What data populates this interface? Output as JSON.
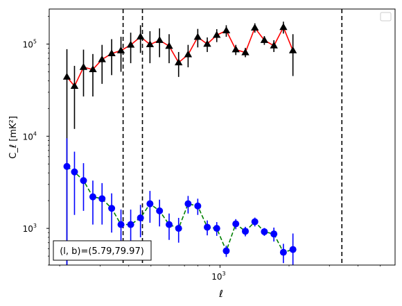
{
  "chart_data": {
    "type": "line",
    "xlabel": "ℓ",
    "ylabel": "C_ℓ [mK²]",
    "xscale": "log",
    "yscale": "log",
    "xlim": [
      180,
      5800
    ],
    "ylim": [
      400,
      240000
    ],
    "x_ticks": [
      {
        "value": 1000,
        "label": "10",
        "sup": "3"
      }
    ],
    "y_ticks": [
      {
        "value": 1000,
        "label": "10",
        "sup": "3"
      },
      {
        "value": 10000,
        "label": "10",
        "sup": "4"
      },
      {
        "value": 100000,
        "label": "10",
        "sup": "5"
      }
    ],
    "grid": false,
    "legend": {
      "placement": "top-right",
      "entries": []
    },
    "annotation": "(l, b)=(5.79,79.97)",
    "vlines": [
      378,
      459,
      3400
    ],
    "series": [
      {
        "color": "#ff0000",
        "marker": "triangle",
        "marker_color": "#000000",
        "error_color": "#000000",
        "linestyle": "solid",
        "points": [
          {
            "x": 215,
            "y": 44000,
            "lo": 330,
            "hi": 88000
          },
          {
            "x": 232,
            "y": 35000,
            "lo": 12000,
            "hi": 58000
          },
          {
            "x": 254,
            "y": 56000,
            "lo": 27000,
            "hi": 87000
          },
          {
            "x": 279,
            "y": 53000,
            "lo": 27000,
            "hi": 78000
          },
          {
            "x": 306,
            "y": 68000,
            "lo": 37000,
            "hi": 98000
          },
          {
            "x": 337,
            "y": 79000,
            "lo": 46000,
            "hi": 113000
          },
          {
            "x": 370,
            "y": 85000,
            "lo": 50000,
            "hi": 120000
          },
          {
            "x": 408,
            "y": 98000,
            "lo": 62000,
            "hi": 133000
          },
          {
            "x": 450,
            "y": 120000,
            "lo": 80000,
            "hi": 160000
          },
          {
            "x": 495,
            "y": 99000,
            "lo": 62000,
            "hi": 138000
          },
          {
            "x": 545,
            "y": 110000,
            "lo": 72000,
            "hi": 148000
          },
          {
            "x": 600,
            "y": 95000,
            "lo": 62000,
            "hi": 128000
          },
          {
            "x": 660,
            "y": 63000,
            "lo": 44000,
            "hi": 82000
          },
          {
            "x": 726,
            "y": 77000,
            "lo": 56000,
            "hi": 98000
          },
          {
            "x": 800,
            "y": 119000,
            "lo": 92000,
            "hi": 146000
          },
          {
            "x": 880,
            "y": 100000,
            "lo": 82000,
            "hi": 118000
          },
          {
            "x": 968,
            "y": 125000,
            "lo": 105000,
            "hi": 145000
          },
          {
            "x": 1065,
            "y": 140000,
            "lo": 120000,
            "hi": 160000
          },
          {
            "x": 1172,
            "y": 87000,
            "lo": 76000,
            "hi": 98000
          },
          {
            "x": 1290,
            "y": 81000,
            "lo": 72000,
            "hi": 91000
          },
          {
            "x": 1419,
            "y": 150000,
            "lo": 133000,
            "hi": 168000
          },
          {
            "x": 1561,
            "y": 110000,
            "lo": 98000,
            "hi": 122000
          },
          {
            "x": 1718,
            "y": 96000,
            "lo": 82000,
            "hi": 110000
          },
          {
            "x": 1890,
            "y": 152000,
            "lo": 130000,
            "hi": 175000
          },
          {
            "x": 2080,
            "y": 85000,
            "lo": 45000,
            "hi": 128000
          }
        ]
      },
      {
        "color": "#008000",
        "marker": "circle",
        "marker_color": "#0000ff",
        "error_color": "#0000ff",
        "linestyle": "dashed",
        "points": [
          {
            "x": 215,
            "y": 4700,
            "lo": 330,
            "hi": 9500
          },
          {
            "x": 232,
            "y": 4100,
            "lo": 1400,
            "hi": 6800
          },
          {
            "x": 254,
            "y": 3300,
            "lo": 1550,
            "hi": 5100
          },
          {
            "x": 279,
            "y": 2200,
            "lo": 1100,
            "hi": 3300
          },
          {
            "x": 306,
            "y": 2100,
            "lo": 1100,
            "hi": 3100
          },
          {
            "x": 337,
            "y": 1650,
            "lo": 900,
            "hi": 2400
          },
          {
            "x": 370,
            "y": 1100,
            "lo": 600,
            "hi": 1600
          },
          {
            "x": 408,
            "y": 1100,
            "lo": 600,
            "hi": 1600
          },
          {
            "x": 450,
            "y": 1300,
            "lo": 800,
            "hi": 1800
          },
          {
            "x": 495,
            "y": 1850,
            "lo": 1150,
            "hi": 2550
          },
          {
            "x": 545,
            "y": 1550,
            "lo": 1050,
            "hi": 2050
          },
          {
            "x": 600,
            "y": 1100,
            "lo": 750,
            "hi": 1450
          },
          {
            "x": 660,
            "y": 1000,
            "lo": 700,
            "hi": 1300
          },
          {
            "x": 726,
            "y": 1850,
            "lo": 1450,
            "hi": 2250
          },
          {
            "x": 800,
            "y": 1750,
            "lo": 1400,
            "hi": 2100
          },
          {
            "x": 880,
            "y": 1030,
            "lo": 840,
            "hi": 1220
          },
          {
            "x": 968,
            "y": 1000,
            "lo": 830,
            "hi": 1170
          },
          {
            "x": 1065,
            "y": 570,
            "lo": 490,
            "hi": 650
          },
          {
            "x": 1172,
            "y": 1120,
            "lo": 980,
            "hi": 1260
          },
          {
            "x": 1290,
            "y": 930,
            "lo": 820,
            "hi": 1040
          },
          {
            "x": 1419,
            "y": 1180,
            "lo": 1050,
            "hi": 1310
          },
          {
            "x": 1561,
            "y": 920,
            "lo": 830,
            "hi": 1010
          },
          {
            "x": 1718,
            "y": 870,
            "lo": 720,
            "hi": 1020
          },
          {
            "x": 1890,
            "y": 550,
            "lo": 420,
            "hi": 680
          },
          {
            "x": 2080,
            "y": 590,
            "lo": 300,
            "hi": 880
          }
        ]
      }
    ]
  }
}
